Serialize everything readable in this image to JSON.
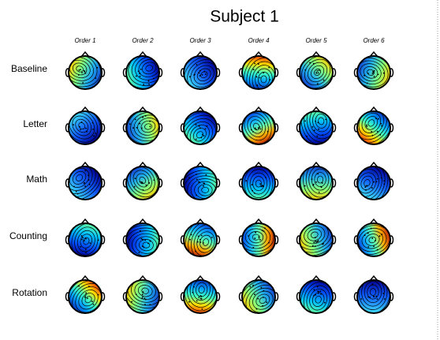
{
  "title": "Subject 1",
  "columns": [
    "Order 1",
    "Order 2",
    "Order 3",
    "Order 4",
    "Order 5",
    "Order 6"
  ],
  "rows": [
    "Baseline",
    "Letter",
    "Math",
    "Counting",
    "Rotation"
  ]
}
